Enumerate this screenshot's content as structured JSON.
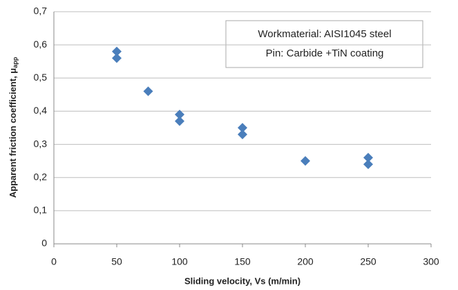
{
  "chart_data": {
    "type": "scatter",
    "xlabel": "Sliding velocity, Vs (m/min)",
    "ylabel": "Apparent friction coefficient, μ",
    "ylabel_sub": "app",
    "annotation": [
      "Workmaterial: AISI1045 steel",
      "Pin: Carbide +TiN coating"
    ],
    "color": "#4a7ebb",
    "x": [
      50,
      50,
      75,
      100,
      100,
      150,
      150,
      200,
      250,
      250
    ],
    "values": [
      0.58,
      0.56,
      0.46,
      0.39,
      0.37,
      0.35,
      0.33,
      0.25,
      0.26,
      0.24
    ],
    "xlim": [
      0,
      300
    ],
    "xticks": [
      0,
      50,
      100,
      150,
      200,
      250,
      300
    ],
    "ylim": [
      0,
      0.7
    ],
    "yticks": [
      0,
      {
        "value": 0.1,
        "label": "0,1"
      },
      {
        "value": 0.2,
        "label": "0,2"
      },
      {
        "value": 0.3,
        "label": "0,3"
      },
      {
        "value": 0.4,
        "label": "0,4"
      },
      {
        "value": 0.5,
        "label": "0,5"
      },
      {
        "value": 0.6,
        "label": "0,6"
      },
      {
        "value": 0.7,
        "label": "0,7"
      }
    ],
    "grid": true
  }
}
